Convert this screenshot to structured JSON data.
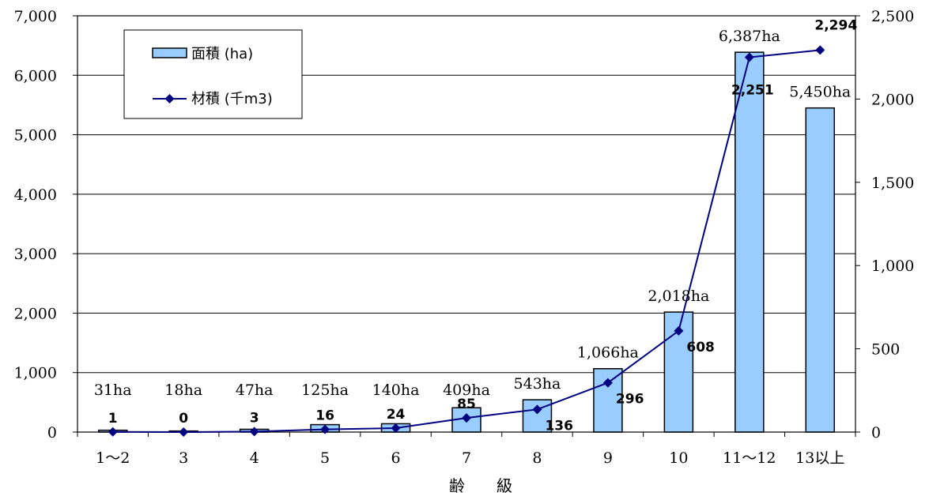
{
  "chart_data": {
    "type": "bar",
    "xlabel": "齢　　級",
    "categories": [
      "1～2",
      "3",
      "4",
      "5",
      "6",
      "7",
      "8",
      "9",
      "10",
      "11～12",
      "13以上"
    ],
    "y_left": {
      "ylim": [
        0,
        7000
      ],
      "ticks": [
        0,
        1000,
        2000,
        3000,
        4000,
        5000,
        6000,
        7000
      ],
      "tick_labels": [
        "0",
        "1,000",
        "2,000",
        "3,000",
        "4,000",
        "5,000",
        "6,000",
        "7,000"
      ]
    },
    "y_right": {
      "ylim": [
        0,
        2500
      ],
      "ticks": [
        0,
        500,
        1000,
        1500,
        2000,
        2500
      ],
      "tick_labels": [
        "0",
        "500",
        "1,000",
        "1,500",
        "2,000",
        "2,500"
      ]
    },
    "series": [
      {
        "name": "面積 (ha)",
        "type": "bar",
        "axis": "left",
        "color": "#99CCFF",
        "values": [
          31,
          18,
          47,
          125,
          140,
          409,
          543,
          1066,
          2018,
          6387,
          5450
        ],
        "data_labels": [
          "31ha",
          "18ha",
          "47ha",
          "125ha",
          "140ha",
          "409ha",
          "543ha",
          "1,066ha",
          "2,018ha",
          "6,387ha",
          "5,450ha"
        ]
      },
      {
        "name": "材積 (千m3)",
        "type": "line",
        "axis": "right",
        "color": "#000080",
        "marker": "diamond",
        "values": [
          1,
          0,
          3,
          16,
          24,
          85,
          136,
          296,
          608,
          2251,
          2294
        ],
        "data_labels": [
          "1",
          "0",
          "3",
          "16",
          "24",
          "85",
          "136",
          "296",
          "608",
          "2,251",
          "2,294"
        ]
      }
    ],
    "legend": {
      "position": "top-left",
      "entries": [
        "面積 (ha)",
        "材積 (千m3)"
      ]
    },
    "grid": true
  }
}
